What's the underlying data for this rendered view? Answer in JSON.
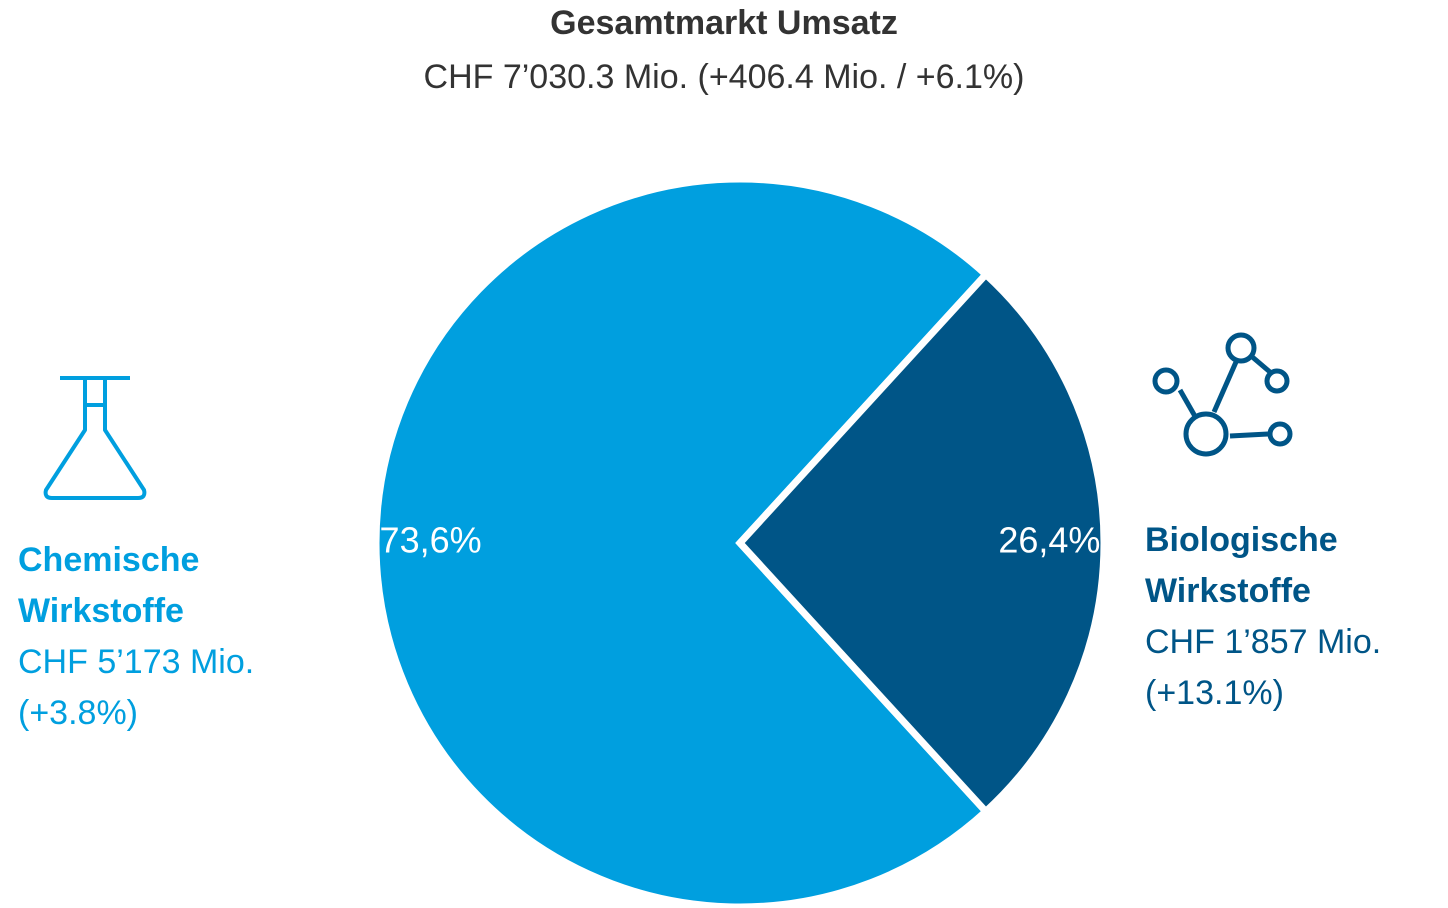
{
  "chart_data": {
    "type": "pie",
    "title": "Gesamtmarkt Umsatz",
    "subtitle": "CHF 7’030.3 Mio. (+406.4 Mio. / +6.1%)",
    "categories": [
      "Chemische Wirkstoffe",
      "Biologische Wirkstoffe"
    ],
    "values": [
      73.6,
      26.4
    ],
    "value_labels": [
      "73,6%",
      "26,4%"
    ],
    "details": [
      "CHF 5’173 Mio. (+3.8%)",
      "CHF 1’857 Mio. (+13.1%)"
    ],
    "colors": [
      "#009fdf",
      "#005587"
    ]
  }
}
